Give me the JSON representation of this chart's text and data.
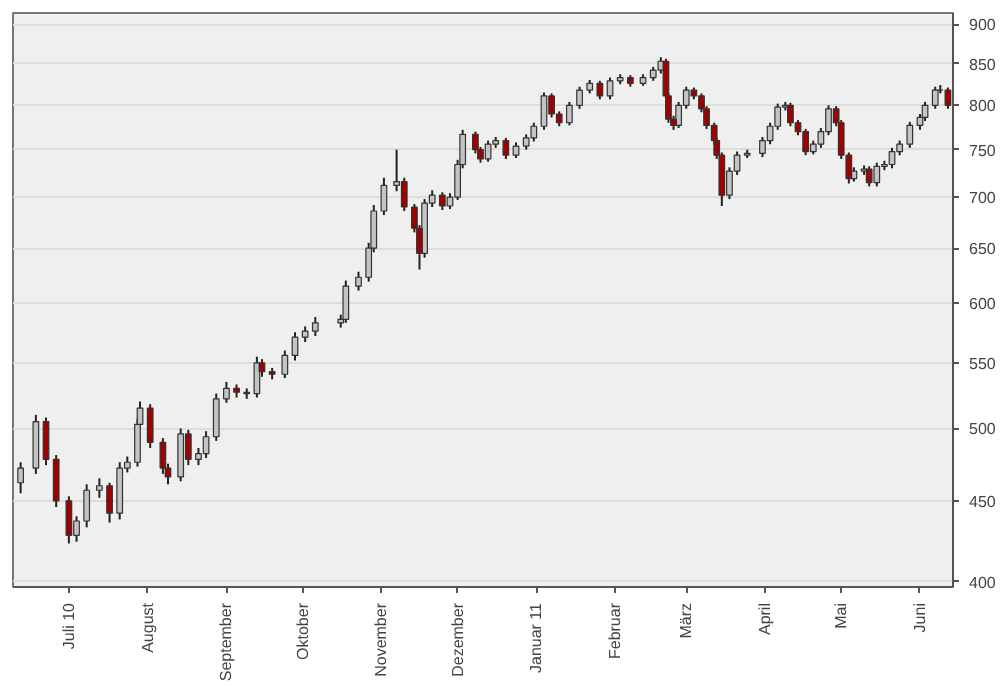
{
  "chart_data": {
    "type": "candlestick",
    "log": "y",
    "grid": "y",
    "xlim": [
      "2010-06-09",
      "2011-06-14"
    ],
    "ylim": [
      397,
      915
    ],
    "yticks": [
      400,
      450,
      500,
      550,
      600,
      650,
      700,
      750,
      800,
      850,
      900
    ],
    "xticks": [
      {
        "value": "2010-07-01",
        "label": "Juli 10"
      },
      {
        "value": "2010-08-01",
        "label": "August"
      },
      {
        "value": "2010-09-01",
        "label": "September"
      },
      {
        "value": "2010-10-01",
        "label": "Oktober"
      },
      {
        "value": "2010-11-01",
        "label": "November"
      },
      {
        "value": "2010-12-01",
        "label": "Dezember"
      },
      {
        "value": "2011-01-01",
        "label": "Januar 11"
      },
      {
        "value": "2011-02-01",
        "label": "Februar"
      },
      {
        "value": "2011-03-01",
        "label": "März"
      },
      {
        "value": "2011-04-01",
        "label": "April"
      },
      {
        "value": "2011-05-01",
        "label": "Mai"
      },
      {
        "value": "2011-06-01",
        "label": "Juni"
      }
    ],
    "x": [
      "2010-06-12",
      "2010-06-18",
      "2010-06-22",
      "2010-06-26",
      "2010-07-01",
      "2010-07-04",
      "2010-07-08",
      "2010-07-13",
      "2010-07-17",
      "2010-07-21",
      "2010-07-24",
      "2010-07-28",
      "2010-07-29",
      "2010-08-02",
      "2010-08-07",
      "2010-08-09",
      "2010-08-14",
      "2010-08-17",
      "2010-08-21",
      "2010-08-24",
      "2010-08-28",
      "2010-09-01",
      "2010-09-05",
      "2010-09-09",
      "2010-09-13",
      "2010-09-15",
      "2010-09-19",
      "2010-09-24",
      "2010-09-28",
      "2010-10-02",
      "2010-10-06",
      "2010-10-16",
      "2010-10-18",
      "2010-10-23",
      "2010-10-27",
      "2010-10-29",
      "2010-11-02",
      "2010-11-07",
      "2010-11-10",
      "2010-11-14",
      "2010-11-16",
      "2010-11-18",
      "2010-11-21",
      "2010-11-25",
      "2010-11-28",
      "2010-12-01",
      "2010-12-03",
      "2010-12-08",
      "2010-12-10",
      "2010-12-13",
      "2010-12-16",
      "2010-12-20",
      "2010-12-24",
      "2010-12-28",
      "2010-12-31",
      "2011-01-04",
      "2011-01-07",
      "2011-01-10",
      "2011-01-14",
      "2011-01-18",
      "2011-01-22",
      "2011-01-26",
      "2011-01-30",
      "2011-02-03",
      "2011-02-07",
      "2011-02-12",
      "2011-02-16",
      "2011-02-19",
      "2011-02-21",
      "2011-02-22",
      "2011-02-24",
      "2011-02-26",
      "2011-03-01",
      "2011-03-04",
      "2011-03-07",
      "2011-03-09",
      "2011-03-12",
      "2011-03-13",
      "2011-03-15",
      "2011-03-18",
      "2011-03-21",
      "2011-03-25",
      "2011-03-31",
      "2011-04-03",
      "2011-04-06",
      "2011-04-09",
      "2011-04-11",
      "2011-04-14",
      "2011-04-17",
      "2011-04-20",
      "2011-04-23",
      "2011-04-26",
      "2011-04-29",
      "2011-05-01",
      "2011-05-04",
      "2011-05-06",
      "2011-05-10",
      "2011-05-12",
      "2011-05-15",
      "2011-05-18",
      "2011-05-21",
      "2011-05-24",
      "2011-05-28",
      "2011-06-01",
      "2011-06-03",
      "2011-06-07",
      "2011-06-09",
      "2011-06-12"
    ],
    "ohlc": [
      [
        462,
        476,
        455,
        472
      ],
      [
        472,
        510,
        468,
        505
      ],
      [
        505,
        508,
        474,
        478
      ],
      [
        478,
        481,
        446,
        450
      ],
      [
        450,
        453,
        423,
        428
      ],
      [
        428,
        440,
        424,
        437
      ],
      [
        437,
        461,
        433,
        457
      ],
      [
        457,
        465,
        452,
        460
      ],
      [
        460,
        462,
        436,
        442
      ],
      [
        442,
        476,
        438,
        472
      ],
      [
        472,
        480,
        469,
        476
      ],
      [
        476,
        507,
        473,
        503
      ],
      [
        503,
        520,
        500,
        515
      ],
      [
        515,
        518,
        486,
        490
      ],
      [
        490,
        493,
        468,
        472
      ],
      [
        472,
        475,
        461,
        466
      ],
      [
        466,
        500,
        463,
        496
      ],
      [
        496,
        499,
        474,
        478
      ],
      [
        478,
        486,
        474,
        482
      ],
      [
        482,
        498,
        479,
        494
      ],
      [
        494,
        526,
        491,
        522
      ],
      [
        522,
        535,
        519,
        530
      ],
      [
        530,
        533,
        523,
        527
      ],
      [
        527,
        530,
        522,
        526
      ],
      [
        526,
        555,
        523,
        550
      ],
      [
        550,
        553,
        539,
        543
      ],
      [
        543,
        546,
        537,
        541
      ],
      [
        541,
        560,
        538,
        556
      ],
      [
        556,
        575,
        552,
        571
      ],
      [
        571,
        580,
        567,
        576
      ],
      [
        576,
        588,
        572,
        583
      ],
      [
        583,
        590,
        579,
        586
      ],
      [
        586,
        620,
        583,
        615
      ],
      [
        615,
        628,
        611,
        623
      ],
      [
        623,
        655,
        619,
        650
      ],
      [
        650,
        692,
        646,
        686
      ],
      [
        686,
        720,
        682,
        712
      ],
      [
        712,
        750,
        706,
        716
      ],
      [
        716,
        720,
        686,
        690
      ],
      [
        690,
        693,
        665,
        669
      ],
      [
        669,
        672,
        630,
        645
      ],
      [
        645,
        698,
        641,
        694
      ],
      [
        694,
        707,
        690,
        702
      ],
      [
        702,
        705,
        687,
        691
      ],
      [
        691,
        704,
        688,
        700
      ],
      [
        700,
        739,
        697,
        734
      ],
      [
        734,
        772,
        730,
        767
      ],
      [
        767,
        770,
        746,
        750
      ],
      [
        750,
        753,
        736,
        740
      ],
      [
        740,
        760,
        737,
        756
      ],
      [
        756,
        764,
        752,
        760
      ],
      [
        760,
        763,
        740,
        744
      ],
      [
        744,
        758,
        741,
        754
      ],
      [
        754,
        767,
        750,
        763
      ],
      [
        763,
        780,
        759,
        776
      ],
      [
        776,
        815,
        772,
        811
      ],
      [
        811,
        814,
        786,
        790
      ],
      [
        790,
        793,
        776,
        780
      ],
      [
        780,
        804,
        777,
        800
      ],
      [
        800,
        822,
        796,
        818
      ],
      [
        818,
        830,
        814,
        826
      ],
      [
        826,
        829,
        807,
        811
      ],
      [
        811,
        833,
        807,
        829
      ],
      [
        829,
        837,
        825,
        833
      ],
      [
        833,
        836,
        822,
        826
      ],
      [
        826,
        837,
        823,
        833
      ],
      [
        833,
        846,
        829,
        842
      ],
      [
        842,
        858,
        838,
        853
      ],
      [
        853,
        856,
        807,
        811
      ],
      [
        811,
        814,
        780,
        784
      ],
      [
        784,
        788,
        772,
        777
      ],
      [
        777,
        804,
        774,
        800
      ],
      [
        800,
        822,
        796,
        818
      ],
      [
        818,
        821,
        807,
        811
      ],
      [
        811,
        814,
        792,
        796
      ],
      [
        796,
        799,
        773,
        777
      ],
      [
        777,
        780,
        756,
        760
      ],
      [
        760,
        763,
        740,
        744
      ],
      [
        744,
        747,
        691,
        702
      ],
      [
        702,
        731,
        698,
        727
      ],
      [
        727,
        748,
        723,
        744
      ],
      [
        744,
        750,
        741,
        746
      ],
      [
        746,
        764,
        742,
        760
      ],
      [
        760,
        780,
        756,
        776
      ],
      [
        776,
        802,
        772,
        798
      ],
      [
        798,
        804,
        794,
        800
      ],
      [
        800,
        803,
        776,
        780
      ],
      [
        780,
        783,
        766,
        770
      ],
      [
        770,
        773,
        744,
        748
      ],
      [
        748,
        760,
        745,
        756
      ],
      [
        756,
        774,
        752,
        770
      ],
      [
        770,
        800,
        766,
        796
      ],
      [
        796,
        799,
        776,
        780
      ],
      [
        780,
        783,
        740,
        744
      ],
      [
        744,
        747,
        714,
        719
      ],
      [
        719,
        731,
        716,
        727
      ],
      [
        727,
        733,
        723,
        729
      ],
      [
        729,
        732,
        711,
        715
      ],
      [
        715,
        736,
        711,
        732
      ],
      [
        732,
        738,
        728,
        734
      ],
      [
        734,
        752,
        730,
        748
      ],
      [
        748,
        760,
        744,
        756
      ],
      [
        756,
        781,
        752,
        777
      ],
      [
        777,
        790,
        772,
        786
      ],
      [
        786,
        804,
        782,
        800
      ],
      [
        800,
        822,
        796,
        818
      ],
      [
        818,
        824,
        814,
        818
      ],
      [
        818,
        821,
        796,
        800
      ]
    ]
  }
}
